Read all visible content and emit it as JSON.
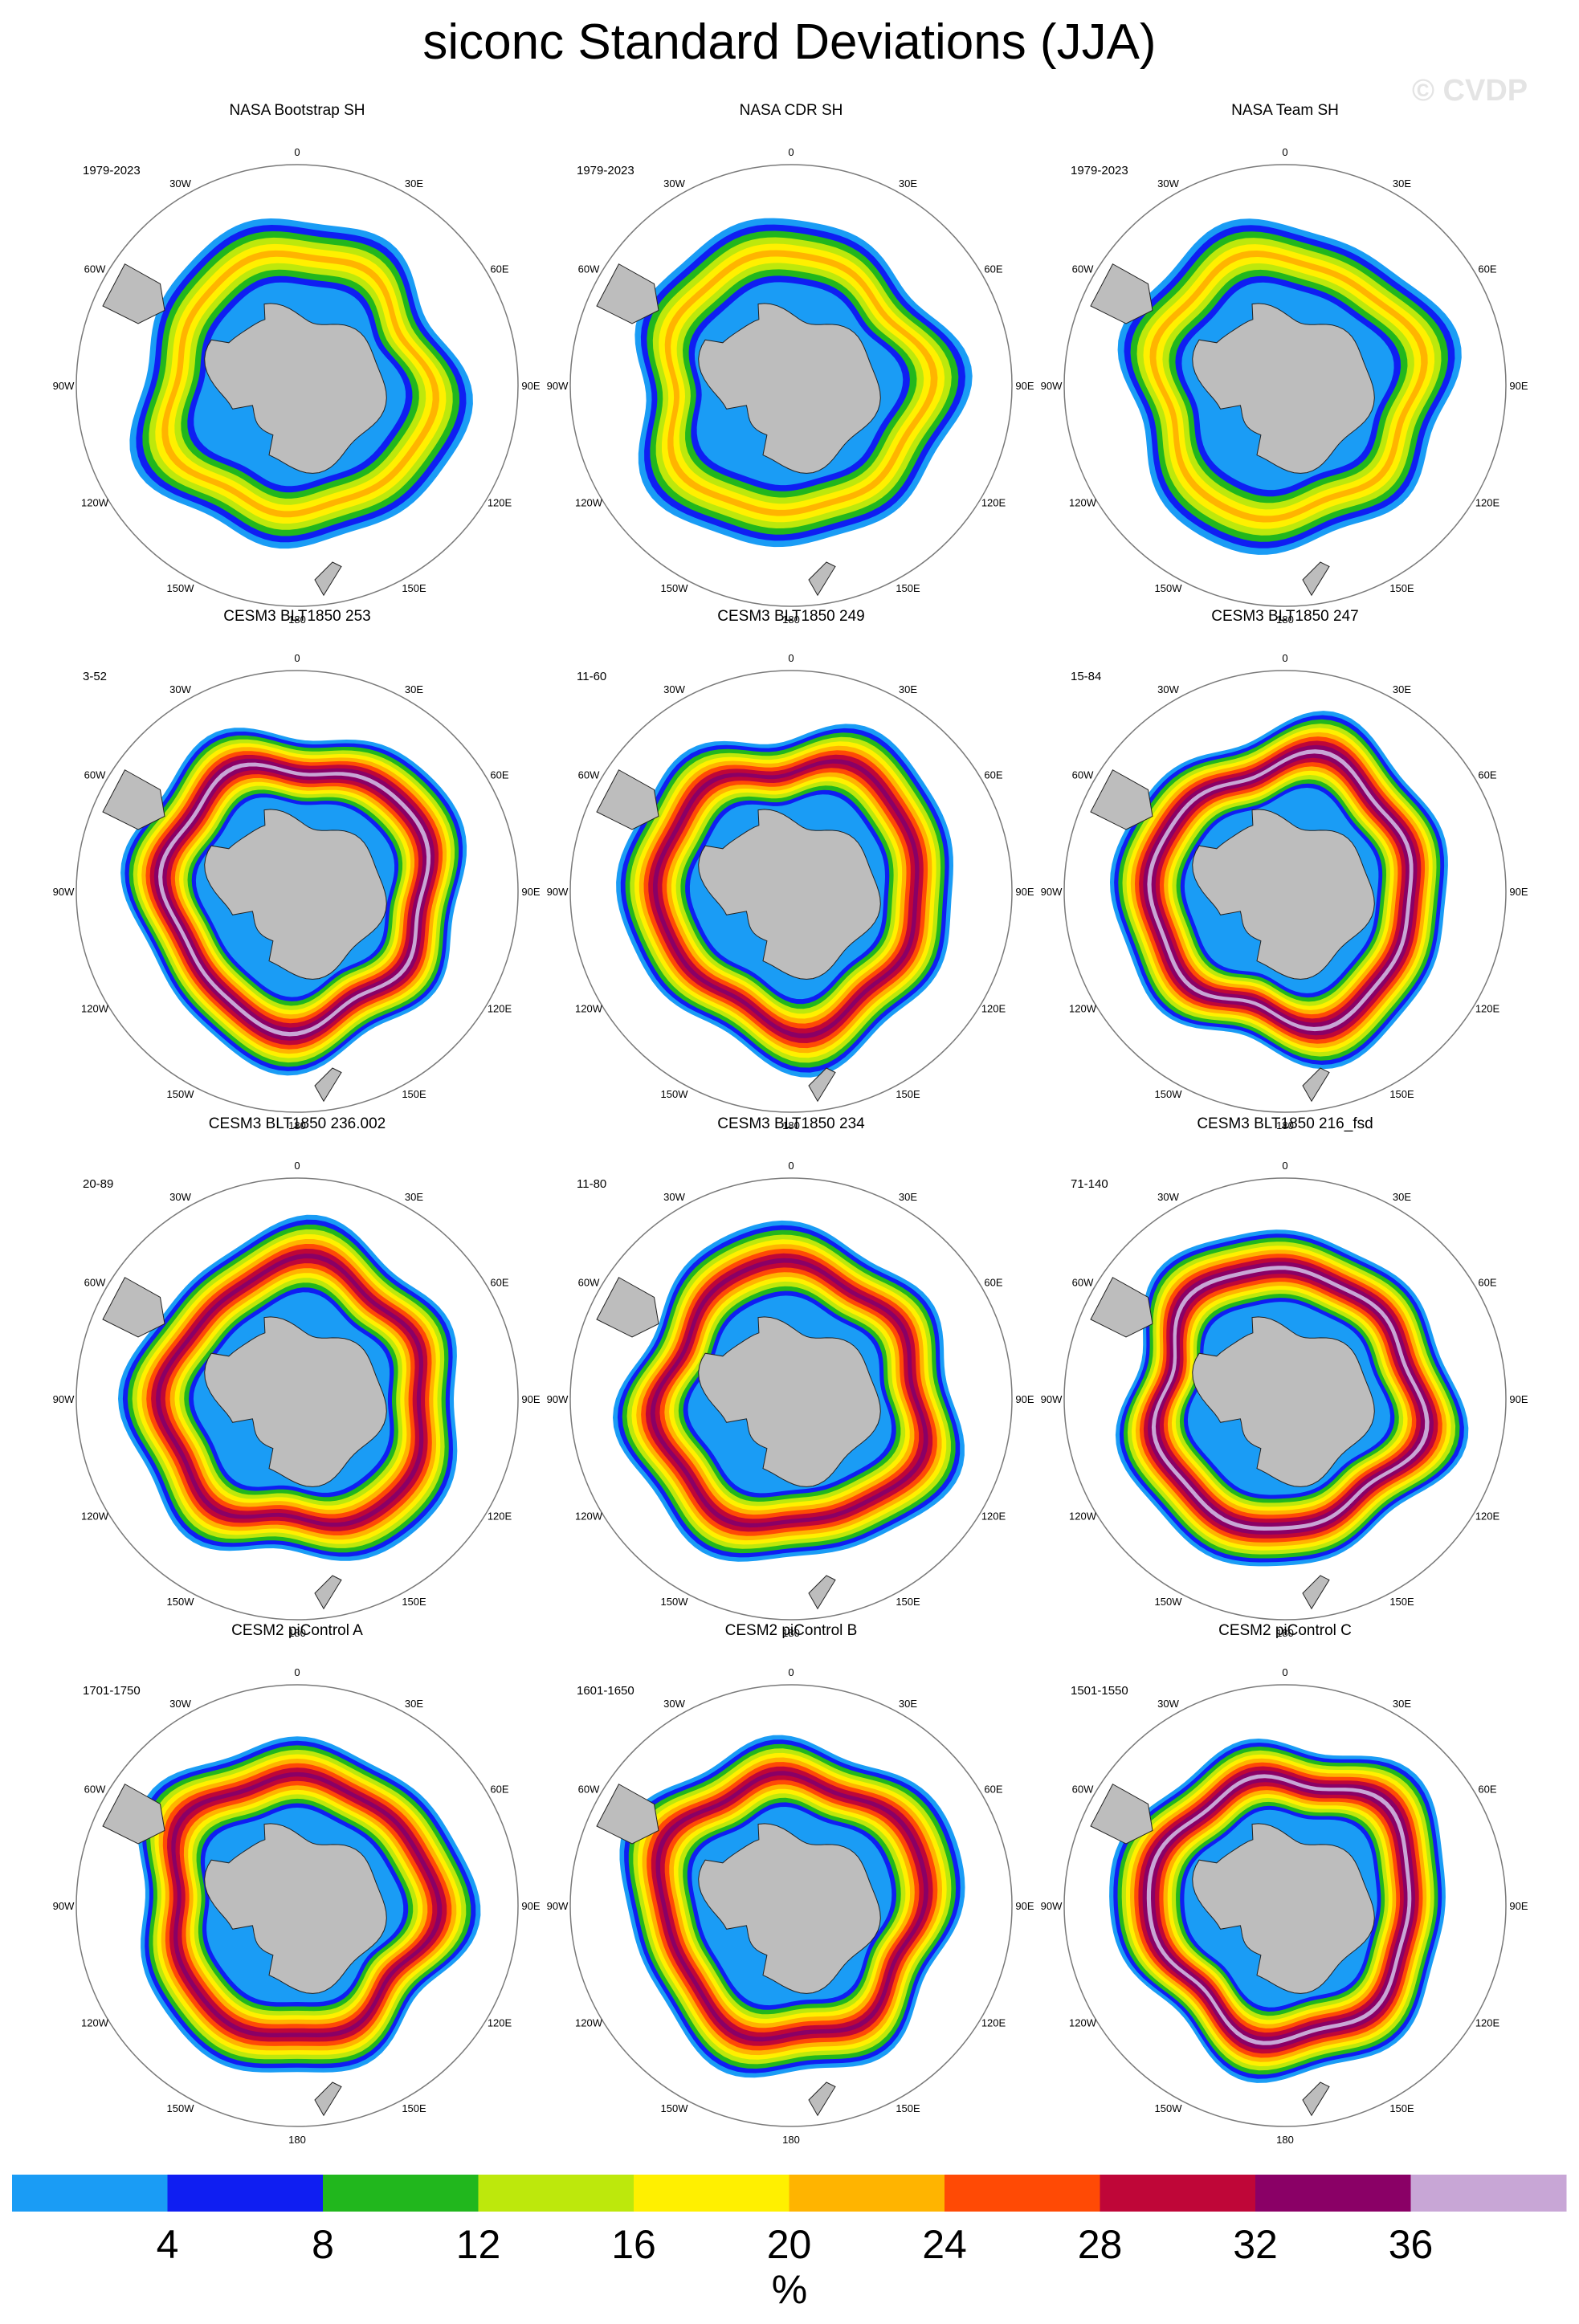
{
  "title": "siconc Standard Deviations (JJA)",
  "watermark": "© CVDP",
  "chart_data": {
    "type": "heatmap",
    "projection": "south polar stereographic",
    "variable": "siconc",
    "statistic": "Standard Deviations",
    "season": "JJA",
    "longitude_labels": [
      "0",
      "30E",
      "60E",
      "90E",
      "120E",
      "150E",
      "180",
      "150W",
      "120W",
      "90W",
      "60W",
      "30W"
    ],
    "panels": [
      {
        "title": "NASA Bootstrap SH",
        "period": "1979-2023",
        "kind": "obs",
        "max_std": 20
      },
      {
        "title": "NASA CDR SH",
        "period": "1979-2023",
        "kind": "obs",
        "max_std": 20
      },
      {
        "title": "NASA Team SH",
        "period": "1979-2023",
        "kind": "obs",
        "max_std": 20
      },
      {
        "title": "CESM3 BLT1850 253",
        "period": "3-52",
        "kind": "model",
        "max_std": 36
      },
      {
        "title": "CESM3 BLT1850 249",
        "period": "11-60",
        "kind": "model",
        "max_std": 32
      },
      {
        "title": "CESM3 BLT1850 247",
        "period": "15-84",
        "kind": "model",
        "max_std": 36
      },
      {
        "title": "CESM3 BLT1850 236.002",
        "period": "20-89",
        "kind": "model",
        "max_std": 32
      },
      {
        "title": "CESM3 BLT1850 234",
        "period": "11-80",
        "kind": "model",
        "max_std": 32
      },
      {
        "title": "CESM3 BLT1850 216_fsd",
        "period": "71-140",
        "kind": "model",
        "max_std": 36
      },
      {
        "title": "CESM2 piControl A",
        "period": "1701-1750",
        "kind": "model",
        "max_std": 32
      },
      {
        "title": "CESM2 piControl B",
        "period": "1601-1650",
        "kind": "model",
        "max_std": 32
      },
      {
        "title": "CESM2 piControl C",
        "period": "1501-1550",
        "kind": "model",
        "max_std": 36
      }
    ],
    "colorbar": {
      "levels": [
        4,
        8,
        12,
        16,
        20,
        24,
        28,
        32,
        36
      ],
      "tick_labels": [
        "4",
        "8",
        "12",
        "16",
        "20",
        "24",
        "28",
        "32",
        "36"
      ],
      "colors": [
        "#1a9cf5",
        "#0f1ef2",
        "#21b71d",
        "#bde80c",
        "#fff000",
        "#ffb400",
        "#ff4a05",
        "#bf0638",
        "#8a0066",
        "#c8a6d6"
      ],
      "units": "%"
    },
    "land_color": "#bdbdbd",
    "outline_color": "#222222"
  }
}
